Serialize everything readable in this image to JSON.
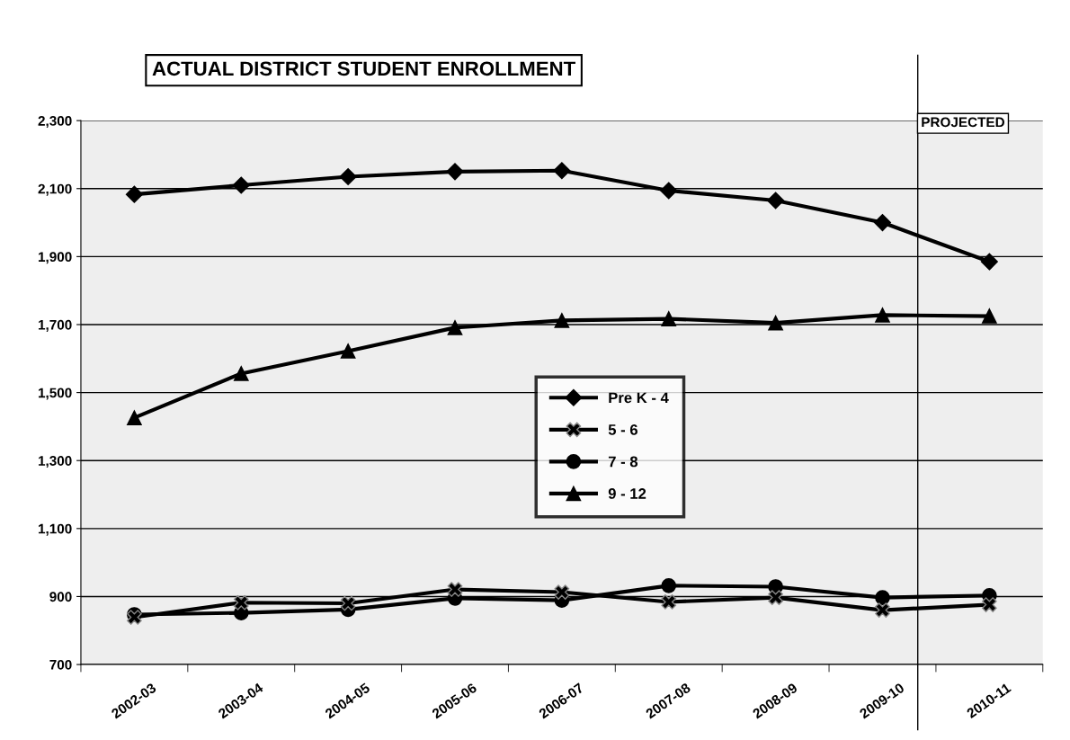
{
  "chart_data": {
    "type": "line",
    "title": "ACTUAL DISTRICT STUDENT ENROLLMENT",
    "categories": [
      "2002-03",
      "2003-04",
      "2004-05",
      "2005-06",
      "2006-07",
      "2007-08",
      "2008-09",
      "2009-10",
      "2010-11"
    ],
    "series": [
      {
        "name": "Pre K - 4",
        "color": "#000000",
        "marker": "diamond",
        "values": [
          2083,
          2110,
          2135,
          2150,
          2153,
          2094,
          2065,
          2000,
          1885
        ]
      },
      {
        "name": "5 - 6",
        "color": "#000000",
        "marker": "cross",
        "values": [
          839,
          882,
          880,
          921,
          913,
          884,
          897,
          860,
          876
        ]
      },
      {
        "name": "7 - 8",
        "color": "#000000",
        "marker": "circle",
        "values": [
          847,
          852,
          862,
          895,
          889,
          932,
          929,
          897,
          903
        ]
      },
      {
        "name": "9 - 12",
        "color": "#000000",
        "marker": "triangle",
        "values": [
          1426,
          1556,
          1622,
          1691,
          1712,
          1717,
          1705,
          1728,
          1725
        ]
      }
    ],
    "ylim": [
      700,
      2300
    ],
    "yticks": [
      {
        "value": 700,
        "label": "700"
      },
      {
        "value": 900,
        "label": "900"
      },
      {
        "value": 1100,
        "label": "1,100"
      },
      {
        "value": 1300,
        "label": "1,300"
      },
      {
        "value": 1500,
        "label": "1,500"
      },
      {
        "value": 1700,
        "label": "1,700"
      },
      {
        "value": 1900,
        "label": "1,900"
      },
      {
        "value": 2100,
        "label": "2,100"
      },
      {
        "value": 2300,
        "label": "2,300"
      }
    ],
    "annotations": [
      "PROJECTED"
    ],
    "grid": "y",
    "legend": "center",
    "line_style": "solid"
  }
}
